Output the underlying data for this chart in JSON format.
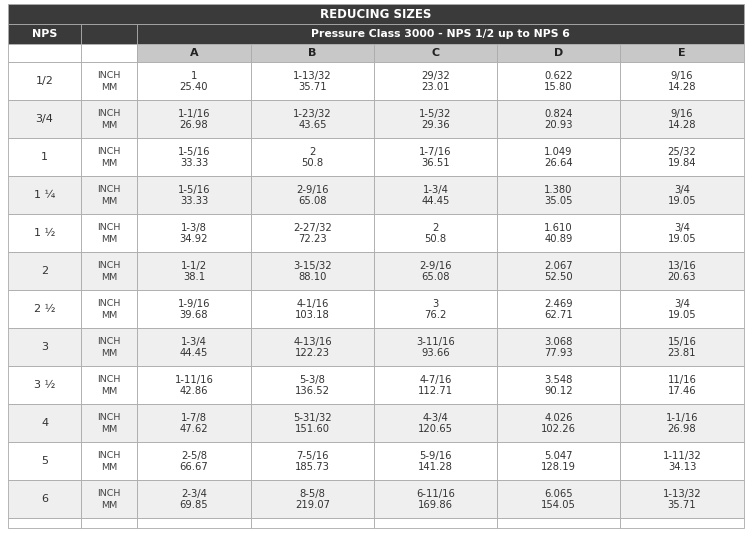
{
  "title": "REDUCING SIZES",
  "subtitle": "Pressure Class 3000 - NPS 1/2 up to NPS 6",
  "rows": [
    {
      "nps": "1/2",
      "unit": [
        "INCH",
        "MM"
      ],
      "A": [
        "1",
        "25.40"
      ],
      "B": [
        "1-13/32",
        "35.71"
      ],
      "C": [
        "29/32",
        "23.01"
      ],
      "D": [
        "0.622",
        "15.80"
      ],
      "E": [
        "9/16",
        "14.28"
      ]
    },
    {
      "nps": "3/4",
      "unit": [
        "INCH",
        "MM"
      ],
      "A": [
        "1-1/16",
        "26.98"
      ],
      "B": [
        "1-23/32",
        "43.65"
      ],
      "C": [
        "1-5/32",
        "29.36"
      ],
      "D": [
        "0.824",
        "20.93"
      ],
      "E": [
        "9/16",
        "14.28"
      ]
    },
    {
      "nps": "1",
      "unit": [
        "INCH",
        "MM"
      ],
      "A": [
        "1-5/16",
        "33.33"
      ],
      "B": [
        "2",
        "50.8"
      ],
      "C": [
        "1-7/16",
        "36.51"
      ],
      "D": [
        "1.049",
        "26.64"
      ],
      "E": [
        "25/32",
        "19.84"
      ]
    },
    {
      "nps": "1 ¼",
      "unit": [
        "INCH",
        "MM"
      ],
      "A": [
        "1-5/16",
        "33.33"
      ],
      "B": [
        "2-9/16",
        "65.08"
      ],
      "C": [
        "1-3/4",
        "44.45"
      ],
      "D": [
        "1.380",
        "35.05"
      ],
      "E": [
        "3/4",
        "19.05"
      ]
    },
    {
      "nps": "1 ½",
      "unit": [
        "INCH",
        "MM"
      ],
      "A": [
        "1-3/8",
        "34.92"
      ],
      "B": [
        "2-27/32",
        "72.23"
      ],
      "C": [
        "2",
        "50.8"
      ],
      "D": [
        "1.610",
        "40.89"
      ],
      "E": [
        "3/4",
        "19.05"
      ]
    },
    {
      "nps": "2",
      "unit": [
        "INCH",
        "MM"
      ],
      "A": [
        "1-1/2",
        "38.1"
      ],
      "B": [
        "3-15/32",
        "88.10"
      ],
      "C": [
        "2-9/16",
        "65.08"
      ],
      "D": [
        "2.067",
        "52.50"
      ],
      "E": [
        "13/16",
        "20.63"
      ]
    },
    {
      "nps": "2 ½",
      "unit": [
        "INCH",
        "MM"
      ],
      "A": [
        "1-9/16",
        "39.68"
      ],
      "B": [
        "4-1/16",
        "103.18"
      ],
      "C": [
        "3",
        "76.2"
      ],
      "D": [
        "2.469",
        "62.71"
      ],
      "E": [
        "3/4",
        "19.05"
      ]
    },
    {
      "nps": "3",
      "unit": [
        "INCH",
        "MM"
      ],
      "A": [
        "1-3/4",
        "44.45"
      ],
      "B": [
        "4-13/16",
        "122.23"
      ],
      "C": [
        "3-11/16",
        "93.66"
      ],
      "D": [
        "3.068",
        "77.93"
      ],
      "E": [
        "15/16",
        "23.81"
      ]
    },
    {
      "nps": "3 ½",
      "unit": [
        "INCH",
        "MM"
      ],
      "A": [
        "1-11/16",
        "42.86"
      ],
      "B": [
        "5-3/8",
        "136.52"
      ],
      "C": [
        "4-7/16",
        "112.71"
      ],
      "D": [
        "3.548",
        "90.12"
      ],
      "E": [
        "11/16",
        "17.46"
      ]
    },
    {
      "nps": "4",
      "unit": [
        "INCH",
        "MM"
      ],
      "A": [
        "1-7/8",
        "47.62"
      ],
      "B": [
        "5-31/32",
        "151.60"
      ],
      "C": [
        "4-3/4",
        "120.65"
      ],
      "D": [
        "4.026",
        "102.26"
      ],
      "E": [
        "1-1/16",
        "26.98"
      ]
    },
    {
      "nps": "5",
      "unit": [
        "INCH",
        "MM"
      ],
      "A": [
        "2-5/8",
        "66.67"
      ],
      "B": [
        "7-5/16",
        "185.73"
      ],
      "C": [
        "5-9/16",
        "141.28"
      ],
      "D": [
        "5.047",
        "128.19"
      ],
      "E": [
        "1-11/32",
        "34.13"
      ]
    },
    {
      "nps": "6",
      "unit": [
        "INCH",
        "MM"
      ],
      "A": [
        "2-3/4",
        "69.85"
      ],
      "B": [
        "8-5/8",
        "219.07"
      ],
      "C": [
        "6-11/16",
        "169.86"
      ],
      "D": [
        "6.065",
        "154.05"
      ],
      "E": [
        "1-13/32",
        "35.71"
      ]
    }
  ],
  "header_bg": "#3a3a3a",
  "header_text_color": "#ffffff",
  "col_header_bg": "#c8c8c8",
  "row_bg_white": "#ffffff",
  "row_bg_gray": "#efefef",
  "border_color": "#aaaaaa",
  "text_color": "#333333",
  "fig_w": 7.52,
  "fig_h": 5.52,
  "dpi": 100
}
